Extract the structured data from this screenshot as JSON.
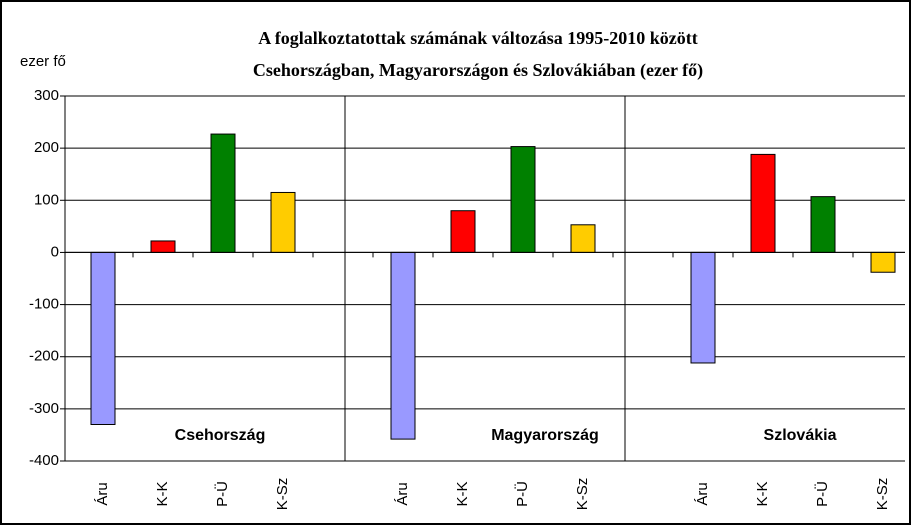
{
  "chart_data": {
    "type": "bar",
    "title": [
      "A foglalkoztatottak számának változása 1995-2010 között",
      "Csehországban, Magyarországon és Szlovákiában (ezer fő)"
    ],
    "y_label": "ezer fő",
    "categories": [
      "Csehország",
      "Magyarország",
      "Szlovákia"
    ],
    "series": [
      {
        "name": "Áru",
        "color": "#9999ff",
        "values": [
          -330,
          -358,
          -212
        ]
      },
      {
        "name": "K-K",
        "color": "#ff0000",
        "values": [
          22,
          80,
          188
        ]
      },
      {
        "name": "P-Ü",
        "color": "#008000",
        "values": [
          227,
          203,
          107
        ]
      },
      {
        "name": "K-Sz",
        "color": "#ffcc00",
        "values": [
          115,
          53,
          -38
        ]
      }
    ],
    "ylim": [
      -400,
      300
    ],
    "yticks": [
      300,
      200,
      100,
      0,
      -100,
      -200,
      -300,
      -400
    ],
    "grid": true
  }
}
